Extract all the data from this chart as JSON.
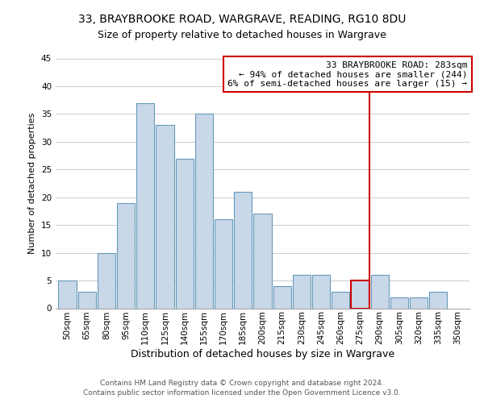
{
  "title": "33, BRAYBROOKE ROAD, WARGRAVE, READING, RG10 8DU",
  "subtitle": "Size of property relative to detached houses in Wargrave",
  "xlabel": "Distribution of detached houses by size in Wargrave",
  "ylabel": "Number of detached properties",
  "bar_labels": [
    "50sqm",
    "65sqm",
    "80sqm",
    "95sqm",
    "110sqm",
    "125sqm",
    "140sqm",
    "155sqm",
    "170sqm",
    "185sqm",
    "200sqm",
    "215sqm",
    "230sqm",
    "245sqm",
    "260sqm",
    "275sqm",
    "290sqm",
    "305sqm",
    "320sqm",
    "335sqm",
    "350sqm"
  ],
  "bar_values": [
    5,
    3,
    10,
    19,
    37,
    33,
    27,
    35,
    16,
    21,
    17,
    4,
    6,
    6,
    3,
    5,
    6,
    2,
    2,
    3,
    0
  ],
  "bar_color": "#c8d8e8",
  "bar_edge_color": "#6699bb",
  "highlight_bar_index": 15,
  "highlight_bar_edge_color": "#cc0000",
  "vline_color": "#cc0000",
  "ylim": [
    0,
    45
  ],
  "yticks": [
    0,
    5,
    10,
    15,
    20,
    25,
    30,
    35,
    40,
    45
  ],
  "annotation_title": "33 BRAYBROOKE ROAD: 283sqm",
  "annotation_line1": "← 94% of detached houses are smaller (244)",
  "annotation_line2": "6% of semi-detached houses are larger (15) →",
  "annotation_box_color": "#ffffff",
  "annotation_box_edge": "#cc0000",
  "footer1": "Contains HM Land Registry data © Crown copyright and database right 2024.",
  "footer2": "Contains public sector information licensed under the Open Government Licence v3.0.",
  "bg_color": "#ffffff",
  "grid_color": "#cccccc",
  "title_fontsize": 10,
  "subtitle_fontsize": 9,
  "xlabel_fontsize": 9,
  "ylabel_fontsize": 8,
  "tick_fontsize": 7.5,
  "annotation_fontsize": 8,
  "footer_fontsize": 6.5
}
